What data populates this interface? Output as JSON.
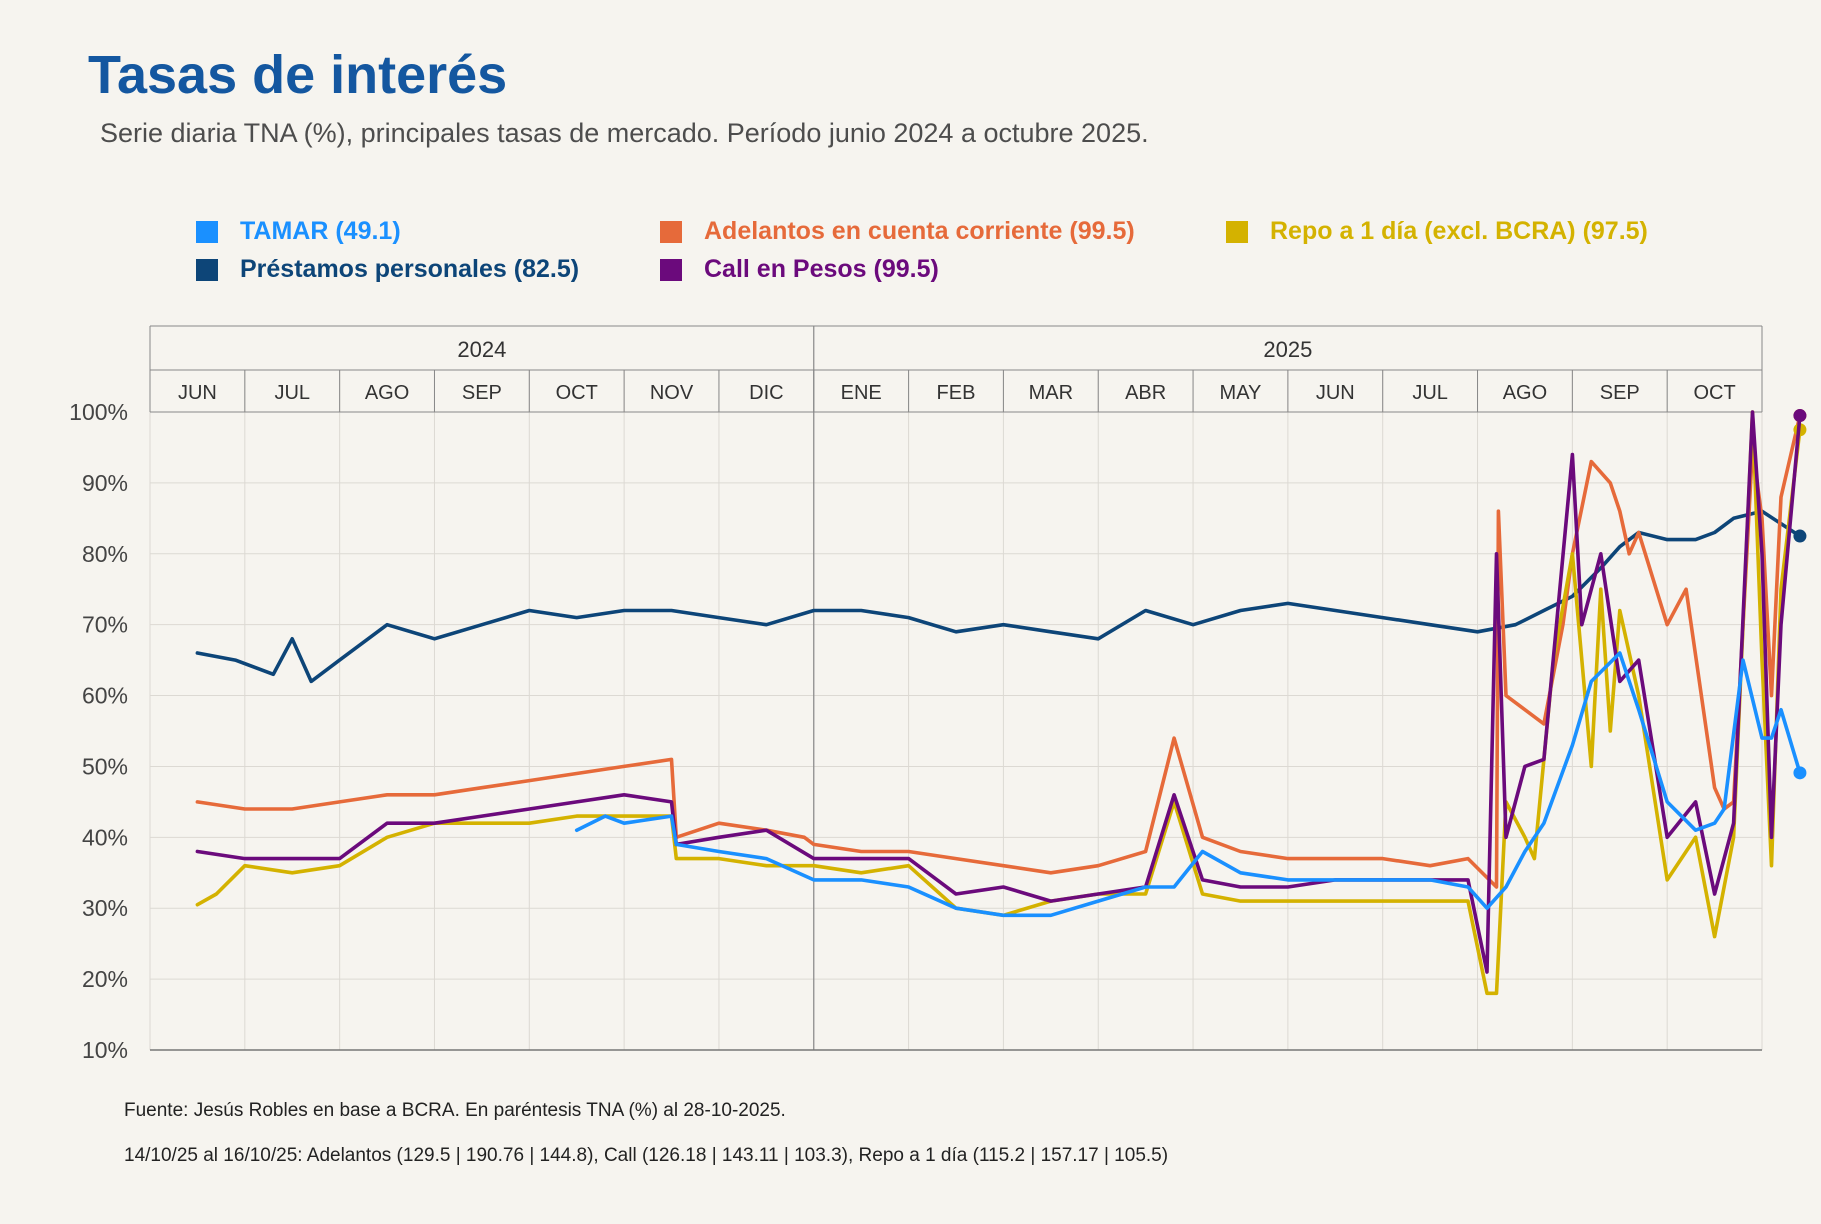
{
  "title": "Tasas de interés",
  "subtitle": "Serie diaria TNA (%), principales tasas de mercado. Período junio 2024 a octubre 2025.",
  "legend": [
    {
      "label": "TAMAR (49.1)",
      "color": "#1a90ff"
    },
    {
      "label": "Adelantos en cuenta corriente (99.5)",
      "color": "#e66a3a"
    },
    {
      "label": "Repo a 1 día (excl. BCRA) (97.5)",
      "color": "#d4b200"
    },
    {
      "label": "Préstamos personales (82.5)",
      "color": "#0d4578"
    },
    {
      "label": "Call en Pesos (99.5)",
      "color": "#6b0a7c"
    }
  ],
  "source": "Fuente: Jesús Robles en base a BCRA. En paréntesis TNA (%) al 28-10-2025.",
  "note": "14/10/25 al 16/10/25: Adelantos (129.5 | 190.76 | 144.8), Call (126.18 | 143.11 | 103.3), Repo a 1 día (115.2 | 157.17 | 105.5)",
  "chart_data": {
    "type": "line",
    "years": [
      "2024",
      "2025"
    ],
    "months": [
      "JUN",
      "JUL",
      "AGO",
      "SEP",
      "OCT",
      "NOV",
      "DIC",
      "ENE",
      "FEB",
      "MAR",
      "ABR",
      "MAY",
      "JUN",
      "JUL",
      "AGO",
      "SEP",
      "OCT"
    ],
    "y_ticks": [
      "10%",
      "20%",
      "30%",
      "40%",
      "50%",
      "60%",
      "70%",
      "80%",
      "90%",
      "100%"
    ],
    "ylim": [
      10,
      100
    ],
    "grid": true,
    "legend_position": "top",
    "series": [
      {
        "name": "Préstamos personales (82.5)",
        "color": "#0d4578",
        "x": [
          0,
          0.4,
          0.8,
          1,
          1.2,
          1.5,
          2,
          2.5,
          3,
          3.5,
          4,
          4.5,
          5,
          5.5,
          6,
          6.5,
          7,
          7.5,
          8,
          8.5,
          9,
          9.5,
          10,
          10.5,
          11,
          11.5,
          12,
          12.5,
          13,
          13.5,
          13.9,
          14.2,
          14.5,
          14.8,
          15,
          15.2,
          15.5,
          15.8,
          16,
          16.2,
          16.5,
          16.9
        ],
        "y": [
          66,
          65,
          63,
          68,
          62,
          65,
          70,
          68,
          70,
          72,
          71,
          72,
          72,
          71,
          70,
          72,
          72,
          71,
          69,
          70,
          69,
          68,
          72,
          70,
          72,
          73,
          72,
          71,
          70,
          69,
          70,
          72,
          74,
          78,
          81,
          83,
          82,
          82,
          83,
          85,
          86,
          82.5
        ],
        "end_marker": true
      },
      {
        "name": "Adelantos en cuenta corriente (99.5)",
        "color": "#e66a3a",
        "x": [
          0,
          0.5,
          1,
          1.5,
          2,
          2.5,
          3,
          3.5,
          4,
          4.5,
          5,
          5.05,
          5.5,
          6,
          6.4,
          6.5,
          7,
          7.5,
          8,
          8.5,
          9,
          9.5,
          10,
          10.3,
          10.6,
          11,
          11.5,
          12,
          12.5,
          13,
          13.4,
          13.7,
          13.72,
          13.8,
          14,
          14.2,
          14.4,
          14.5,
          14.7,
          14.9,
          15,
          15.1,
          15.2,
          15.5,
          15.7,
          16,
          16.1,
          16.2,
          16.4,
          16.5,
          16.6,
          16.7,
          16.9
        ],
        "y": [
          45,
          44,
          44,
          45,
          46,
          46,
          47,
          48,
          49,
          50,
          51,
          40,
          42,
          41,
          40,
          39,
          38,
          38,
          37,
          36,
          35,
          36,
          38,
          54,
          40,
          38,
          37,
          37,
          37,
          36,
          37,
          33,
          86,
          60,
          58,
          56,
          70,
          80,
          93,
          90,
          86,
          80,
          83,
          70,
          75,
          47,
          44,
          45,
          95,
          85,
          60,
          88,
          99.5
        ],
        "end_marker": true
      },
      {
        "name": "Repo a 1 día (excl. BCRA) (97.5)",
        "color": "#d4b200",
        "x": [
          0,
          0.2,
          0.5,
          1,
          1.5,
          2,
          2.5,
          3,
          3.5,
          4,
          4.5,
          5,
          5.05,
          5.5,
          6,
          6.5,
          7,
          7.5,
          8,
          8.5,
          9,
          9.5,
          10,
          10.3,
          10.6,
          11,
          11.5,
          12,
          12.5,
          13,
          13.4,
          13.6,
          13.7,
          13.8,
          14,
          14.1,
          14.3,
          14.5,
          14.7,
          14.8,
          14.9,
          15,
          15.2,
          15.5,
          15.8,
          16,
          16.2,
          16.4,
          16.5,
          16.6,
          16.7,
          16.9
        ],
        "y": [
          30.5,
          32,
          36,
          35,
          36,
          40,
          42,
          42,
          42,
          43,
          43,
          43,
          37,
          37,
          36,
          36,
          35,
          36,
          30,
          29,
          31,
          32,
          32,
          45,
          32,
          31,
          31,
          31,
          31,
          31,
          31,
          18,
          18,
          45,
          40,
          37,
          65,
          80,
          50,
          75,
          55,
          72,
          60,
          34,
          40,
          26,
          40,
          101,
          65,
          36,
          75,
          97.5
        ],
        "end_marker": true
      },
      {
        "name": "Call en Pesos (99.5)",
        "color": "#6b0a7c",
        "x": [
          0,
          0.5,
          1,
          1.5,
          2,
          2.5,
          3,
          3.5,
          4,
          4.5,
          5,
          5.05,
          5.5,
          6,
          6.5,
          7,
          7.5,
          8,
          8.5,
          9,
          9.5,
          10,
          10.3,
          10.6,
          11,
          11.5,
          12,
          12.5,
          13,
          13.4,
          13.6,
          13.7,
          13.8,
          14,
          14.2,
          14.5,
          14.6,
          14.8,
          15,
          15.2,
          15.5,
          15.8,
          16,
          16.2,
          16.4,
          16.5,
          16.6,
          16.7,
          16.9
        ],
        "y": [
          38,
          37,
          37,
          37,
          42,
          42,
          43,
          44,
          45,
          46,
          45,
          39,
          40,
          41,
          37,
          37,
          37,
          32,
          33,
          31,
          32,
          33,
          46,
          34,
          33,
          33,
          34,
          34,
          34,
          34,
          21,
          80,
          40,
          50,
          51,
          94,
          70,
          80,
          62,
          65,
          40,
          45,
          32,
          42,
          101,
          80,
          40,
          70,
          99.5
        ],
        "end_marker": true
      },
      {
        "name": "TAMAR (49.1)",
        "color": "#1a90ff",
        "x": [
          4,
          4.3,
          4.5,
          5,
          5.05,
          5.5,
          6,
          6.5,
          7,
          7.5,
          8,
          8.5,
          9,
          9.5,
          10,
          10.3,
          10.6,
          11,
          11.5,
          12,
          12.5,
          13,
          13.4,
          13.6,
          13.8,
          14,
          14.2,
          14.5,
          14.7,
          15,
          15.2,
          15.5,
          15.8,
          16,
          16.1,
          16.3,
          16.5,
          16.6,
          16.7,
          16.9
        ],
        "y": [
          41,
          43,
          42,
          43,
          39,
          38,
          37,
          34,
          34,
          33,
          30,
          29,
          29,
          31,
          33,
          33,
          38,
          35,
          34,
          34,
          34,
          34,
          33,
          30,
          33,
          38,
          42,
          53,
          62,
          66,
          58,
          45,
          41,
          42,
          44,
          65,
          54,
          54,
          58,
          49.1
        ],
        "end_marker": true
      }
    ]
  }
}
